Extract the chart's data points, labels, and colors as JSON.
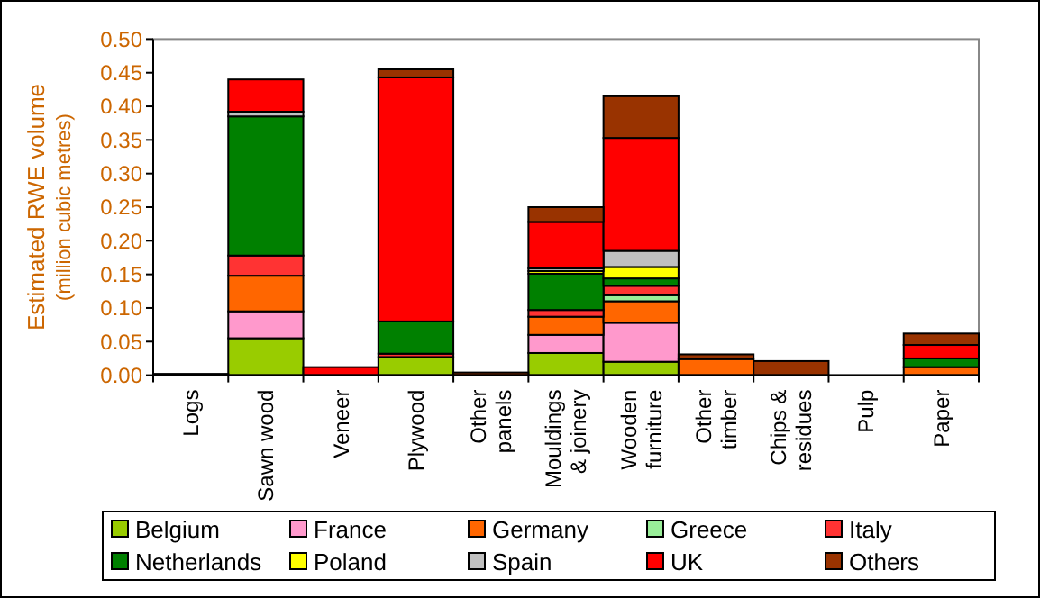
{
  "chart_data": {
    "type": "bar",
    "stacked": true,
    "ylabel": "Estimated RWE volume\n(million cubic metres)",
    "categories": [
      "Logs",
      "Sawn wood",
      "Veneer",
      "Plywood",
      "Other panels",
      "Mouldings & joinery",
      "Wooden furniture",
      "Other timber",
      "Chips & residues",
      "Pulp",
      "Paper"
    ],
    "series": [
      {
        "name": "Belgium",
        "color": "#99cc00",
        "values": [
          0,
          0.055,
          0,
          0.027,
          0,
          0.033,
          0.02,
          0,
          0,
          0,
          null
        ]
      },
      {
        "name": "France",
        "color": "#ff99cc",
        "values": [
          0,
          0.04,
          0,
          0,
          0,
          0.027,
          0.058,
          0,
          0,
          0,
          0
        ]
      },
      {
        "name": "Germany",
        "color": "#ff6600",
        "values": [
          0,
          0.053,
          0,
          null,
          0,
          0.027,
          0.032,
          0.024,
          0,
          0,
          0.012
        ]
      },
      {
        "name": "Greece",
        "color": "#99ee99",
        "values": [
          0,
          0,
          0,
          null,
          0,
          0,
          0.009,
          0,
          0,
          0,
          0
        ]
      },
      {
        "name": "Italy",
        "color": "#ff3333",
        "values": [
          0,
          0.03,
          0,
          0.005,
          0,
          0.01,
          0.014,
          0,
          0,
          0,
          0
        ]
      },
      {
        "name": "Netherlands",
        "color": "#008000",
        "values": [
          0,
          0.207,
          0,
          0.048,
          0,
          0.054,
          0.011,
          0,
          0,
          0,
          0.013
        ]
      },
      {
        "name": "Poland",
        "color": "#ffff00",
        "values": [
          0,
          null,
          0,
          0,
          0,
          0.004,
          0.017,
          0,
          0,
          0,
          0
        ]
      },
      {
        "name": "Spain",
        "color": "#c0c0c0",
        "values": [
          0,
          0.007,
          0,
          0,
          0,
          0.004,
          0.024,
          0,
          0,
          0,
          0
        ]
      },
      {
        "name": "UK",
        "color": "#ff0000",
        "values": [
          0,
          0.048,
          0.012,
          0.363,
          0,
          0.069,
          0.168,
          0,
          0,
          0,
          0.02
        ]
      },
      {
        "name": "Others",
        "color": "#993300",
        "values": [
          0.002,
          0,
          0,
          0.012,
          0.004,
          0.022,
          0.062,
          0.007,
          0.021,
          0,
          0.017
        ]
      }
    ],
    "ylim": [
      0,
      0.5
    ],
    "yticks": [
      {
        "value": 0,
        "label": "0.00"
      },
      {
        "value": 0.05,
        "label": "0.05"
      },
      {
        "value": 0.1,
        "label": "0.10"
      },
      {
        "value": 0.15,
        "label": "0.15"
      },
      {
        "value": 0.2,
        "label": "0.20"
      },
      {
        "value": 0.25,
        "label": "0.25"
      },
      {
        "value": 0.3,
        "label": "0.30"
      },
      {
        "value": 0.35,
        "label": "0.35"
      },
      {
        "value": 0.4,
        "label": "0.40"
      },
      {
        "value": 0.45,
        "label": "0.45"
      },
      {
        "value": 0.5,
        "label": "0.50"
      }
    ],
    "legend": "bottom"
  }
}
